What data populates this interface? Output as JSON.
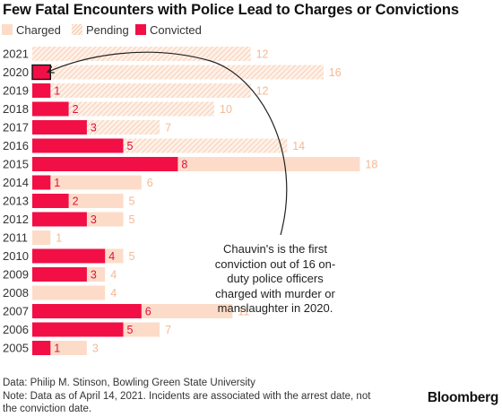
{
  "title": "Few Fatal Encounters with Police Lead to Charges or Convictions",
  "legend": {
    "charged": "Charged",
    "pending": "Pending",
    "convicted": "Convicted"
  },
  "colors": {
    "charged": "#fcdcc8",
    "pending_stripe": "#f3c7ac",
    "pending_bg": "#fff1e8",
    "convicted": "#f20f45",
    "charged_label": "#f5b894"
  },
  "chart_data": {
    "type": "bar",
    "orientation": "horizontal",
    "stacked": true,
    "categories": [
      "2021",
      "2020",
      "2019",
      "2018",
      "2017",
      "2016",
      "2015",
      "2014",
      "2013",
      "2012",
      "2011",
      "2010",
      "2009",
      "2008",
      "2007",
      "2006",
      "2005"
    ],
    "charged_total": [
      12,
      16,
      12,
      10,
      7,
      14,
      18,
      6,
      5,
      5,
      1,
      5,
      4,
      4,
      11,
      7,
      3
    ],
    "convicted": [
      0,
      1,
      1,
      2,
      3,
      5,
      8,
      1,
      2,
      3,
      0,
      4,
      3,
      0,
      6,
      5,
      1
    ],
    "convicted_labels": [
      "",
      "",
      "1",
      "2",
      "3",
      "5",
      "8",
      "1",
      "2",
      "3",
      "",
      "4",
      "3",
      "",
      "6",
      "5",
      "1"
    ],
    "pending": [
      12,
      15,
      11,
      8,
      4,
      9,
      0,
      0,
      0,
      0,
      0,
      0,
      0,
      0,
      0,
      0,
      0
    ],
    "title": "Few Fatal Encounters with Police Lead to Charges or Convictions",
    "xlabel": "",
    "ylabel": "",
    "xlim": [
      0,
      18
    ],
    "grid": false,
    "legend_position": "top-left"
  },
  "annotation": "Chauvin's is the first conviction out of 16 on-duty police officers charged with murder or manslaughter in 2020.",
  "footer": {
    "source": "Data: Philip M. Stinson, Bowling Green State University",
    "note_line1": "Note: Data as of April 14, 2021. Incidents are associated with the arrest date, not",
    "note_line2": "the conviction date."
  },
  "brand": "Bloomberg"
}
